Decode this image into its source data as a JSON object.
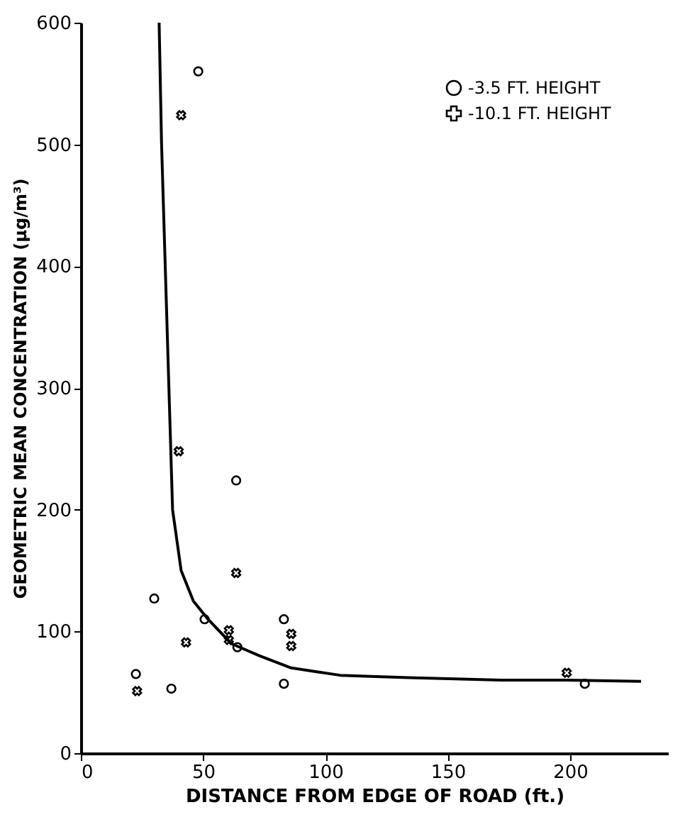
{
  "chart_data": {
    "type": "scatter",
    "xlabel": "DISTANCE FROM EDGE OF ROAD (ft.)",
    "ylabel": "GEOMETRIC MEAN CONCENTRATION (μg/m³)",
    "xlim": [
      0,
      240
    ],
    "ylim": [
      0,
      600
    ],
    "xticks": [
      0,
      50,
      100,
      150,
      200
    ],
    "yticks": [
      0,
      100,
      200,
      300,
      400,
      500,
      600
    ],
    "grid": false,
    "legend": "top right",
    "series": [
      {
        "name": "-3.5 FT. HEIGHT",
        "marker": "circle",
        "color": "#000000",
        "x": [
          48,
          63.5,
          30,
          50.6,
          64,
          83,
          22.5,
          37,
          83,
          206
        ],
        "values": [
          560,
          224,
          127,
          110,
          87,
          110,
          65,
          53,
          57,
          57
        ]
      },
      {
        "name": "-10.1 FT. HEIGHT",
        "marker": "cross",
        "color": "#000000",
        "x": [
          41,
          40,
          63.5,
          43,
          60.5,
          60.5,
          86,
          86,
          23,
          198.6
        ],
        "values": [
          524,
          248,
          148,
          91,
          101,
          93,
          98,
          88,
          51,
          66
        ]
      },
      {
        "type": "line",
        "marker": "none",
        "line_style": "solid",
        "color": "#000000",
        "x": [
          32,
          33,
          34.5,
          36,
          37.5,
          41,
          46,
          52,
          61.5,
          73,
          86,
          96,
          106,
          134,
          172,
          199,
          229
        ],
        "values": [
          600,
          500,
          400,
          300,
          200,
          150,
          125,
          110,
          90,
          80,
          70,
          67,
          64,
          62,
          60,
          60,
          59
        ]
      }
    ]
  }
}
